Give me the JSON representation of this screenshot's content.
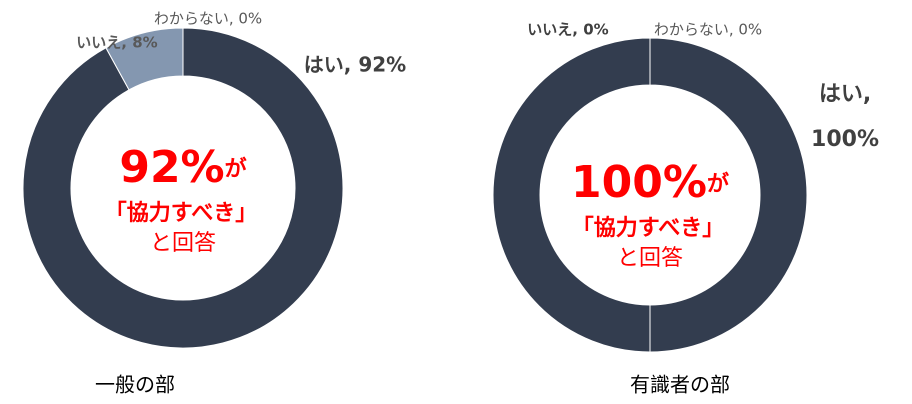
{
  "chart_data": [
    {
      "type": "donut",
      "title": "一般の部",
      "values": [
        92,
        8,
        0
      ],
      "value_labels": [
        "はい, 92%",
        "いいえ, 8%",
        "わからない, 0%"
      ],
      "colors": [
        "#333d4f",
        "#8497b0",
        "#bfbfbf"
      ],
      "center_label": {
        "value": "92%",
        "suffix": "が",
        "line2": "「協力すべき」",
        "line3": "と回答"
      }
    },
    {
      "type": "donut",
      "title": "有識者の部",
      "values": [
        100,
        0,
        0
      ],
      "value_labels": [
        "はい, 100%",
        "いいえ, 0%",
        "わからない, 0%"
      ],
      "colors": [
        "#333d4f",
        "#8497b0",
        "#bfbfbf"
      ],
      "center_label": {
        "value": "100%",
        "suffix": "が",
        "line2": "「協力すべき」",
        "line3": "と回答"
      }
    }
  ]
}
